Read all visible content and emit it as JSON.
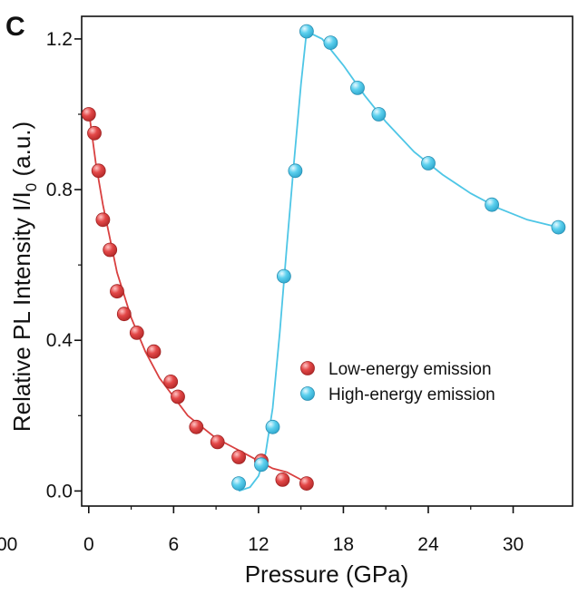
{
  "chart_data": {
    "type": "scatter",
    "panel_label": "C",
    "xlabel": "Pressure (GPa)",
    "ylabel_main": "Relative PL Intensity I/I",
    "ylabel_sub": "0",
    "ylabel_tail": " (a.u.)",
    "xlim": [
      -0.5,
      34.2
    ],
    "ylim": [
      -0.04,
      1.26
    ],
    "x_ticks": [
      0,
      6,
      12,
      18,
      24,
      30
    ],
    "x_tick_labels": [
      "0",
      "6",
      "12",
      "18",
      "24",
      "30"
    ],
    "x_clipped_label": "00",
    "y_ticks": [
      0.0,
      0.4,
      0.8,
      1.2
    ],
    "y_tick_labels": [
      "0.0",
      "0.4",
      "0.8",
      "1.2"
    ],
    "grid": false,
    "legend_position": "center-right",
    "series": [
      {
        "name": "Low-energy emission",
        "color": "#d94040",
        "x": [
          0.0,
          0.4,
          0.7,
          1.0,
          1.5,
          2.0,
          2.5,
          3.4,
          4.6,
          5.8,
          6.3,
          7.6,
          9.1,
          10.6,
          12.2,
          13.7,
          15.4
        ],
        "y": [
          1.0,
          0.95,
          0.85,
          0.72,
          0.64,
          0.53,
          0.47,
          0.42,
          0.37,
          0.29,
          0.25,
          0.17,
          0.13,
          0.09,
          0.08,
          0.03,
          0.02
        ],
        "fit_x": [
          0.0,
          0.5,
          1.0,
          2.0,
          3.0,
          4.0,
          5.0,
          6.0,
          7.0,
          8.0,
          9.0,
          10.0,
          11.0,
          12.0,
          13.0,
          14.0,
          15.0,
          15.4
        ],
        "fit_y": [
          1.01,
          0.87,
          0.76,
          0.58,
          0.46,
          0.37,
          0.3,
          0.25,
          0.2,
          0.17,
          0.14,
          0.12,
          0.1,
          0.08,
          0.06,
          0.05,
          0.03,
          0.03
        ]
      },
      {
        "name": "High-energy emission",
        "color": "#4ec6e6",
        "x": [
          10.6,
          12.2,
          13.0,
          13.8,
          14.6,
          15.4,
          17.1,
          19.0,
          20.5,
          24.0,
          28.5,
          33.2
        ],
        "y": [
          0.02,
          0.07,
          0.17,
          0.57,
          0.85,
          1.22,
          1.19,
          1.07,
          1.0,
          0.87,
          0.76,
          0.7
        ],
        "fit_x": [
          10.6,
          11.4,
          12.0,
          12.5,
          13.0,
          13.5,
          14.0,
          14.5,
          15.0,
          15.4,
          16.5,
          18.0,
          19.5,
          21.0,
          23.0,
          25.0,
          27.0,
          29.0,
          31.0,
          33.2
        ],
        "fit_y": [
          0.0,
          0.01,
          0.04,
          0.1,
          0.22,
          0.42,
          0.65,
          0.87,
          1.08,
          1.22,
          1.2,
          1.13,
          1.05,
          0.98,
          0.9,
          0.84,
          0.79,
          0.75,
          0.72,
          0.7
        ]
      }
    ]
  }
}
